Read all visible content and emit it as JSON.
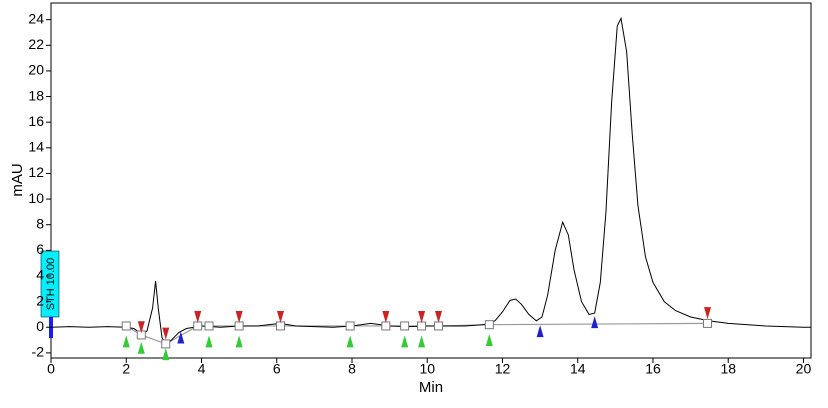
{
  "chart_data": {
    "type": "line",
    "x_label": "Min",
    "y_label": "mAU",
    "annotation": "STH 10.00",
    "xlim": [
      0,
      20.2
    ],
    "ylim": [
      -2.4,
      25.3
    ],
    "xticks": [
      0,
      2,
      4,
      6,
      8,
      10,
      12,
      14,
      16,
      18,
      20
    ],
    "yticks": [
      -2,
      0,
      2,
      4,
      6,
      8,
      10,
      12,
      14,
      16,
      18,
      20,
      22,
      24
    ],
    "series": [
      {
        "style": "line",
        "color": "#000000",
        "x": [
          0,
          0.5,
          1,
          1.5,
          2,
          2.2,
          2.4,
          2.55,
          2.7,
          2.78,
          2.85,
          2.95,
          3.05,
          3.2,
          3.4,
          3.6,
          4,
          4.5,
          5,
          5.5,
          5.8,
          6.1,
          6.5,
          7,
          7.5,
          8,
          8.5,
          9,
          9.5,
          10,
          10.5,
          11,
          11.5,
          11.8,
          12.0,
          12.2,
          12.35,
          12.5,
          12.7,
          12.9,
          13.05,
          13.2,
          13.4,
          13.6,
          13.75,
          13.9,
          14.1,
          14.3,
          14.45,
          14.6,
          14.75,
          14.9,
          15.05,
          15.15,
          15.3,
          15.45,
          15.6,
          15.8,
          16,
          16.3,
          16.6,
          17,
          17.5,
          18,
          19,
          20,
          20.2
        ],
        "values": [
          0,
          0.05,
          0,
          0.05,
          0,
          -0.1,
          -0.5,
          -0.3,
          1.5,
          3.6,
          1.5,
          -0.8,
          -1.4,
          -1.0,
          -0.4,
          -0.1,
          0.1,
          0,
          0.1,
          0.1,
          0.2,
          0.3,
          0.1,
          0.05,
          0,
          0.1,
          0.3,
          0.1,
          0.05,
          0.1,
          0.1,
          0.1,
          0.2,
          0.5,
          1.2,
          2.1,
          2.2,
          1.8,
          1.0,
          0.5,
          0.8,
          2.5,
          6.0,
          8.2,
          7.2,
          4.5,
          2.0,
          1.0,
          1.1,
          3.5,
          9.0,
          17.5,
          23.5,
          24.1,
          21.5,
          15.0,
          9.5,
          5.5,
          3.5,
          2.0,
          1.3,
          0.8,
          0.5,
          0.3,
          0.1,
          0,
          0
        ]
      },
      {
        "style": "line+square",
        "color": "#999999",
        "x": [
          2.0,
          2.4,
          3.05,
          3.9,
          4.2,
          5.0,
          6.1,
          7.95,
          8.9,
          9.4,
          9.85,
          10.3,
          11.65,
          17.45
        ],
        "values": [
          0.1,
          -0.6,
          -1.3,
          0.1,
          0.1,
          0.1,
          0.1,
          0.1,
          0.1,
          0.1,
          0.1,
          0.1,
          0.2,
          0.3
        ]
      },
      {
        "style": "triangle-up",
        "color": "#33cc33",
        "x": [
          2.0,
          2.4,
          3.05,
          4.2,
          5.0,
          7.95,
          9.4,
          9.85,
          11.65
        ],
        "values": [
          -1.1,
          -1.6,
          -2.1,
          -1.1,
          -1.1,
          -1.1,
          -1.1,
          -1.1,
          -1.0
        ]
      },
      {
        "style": "triangle-down",
        "color": "#cc2222",
        "x": [
          2.4,
          3.05,
          3.9,
          5.0,
          6.1,
          8.9,
          9.85,
          10.3,
          17.45
        ],
        "values": [
          0.0,
          -0.5,
          0.8,
          0.8,
          0.8,
          0.8,
          0.8,
          0.8,
          1.1
        ]
      },
      {
        "style": "triangle-up",
        "color": "#2222cc",
        "x": [
          3.45,
          13.0,
          14.45
        ],
        "values": [
          -0.8,
          -0.3,
          0.4
        ]
      }
    ]
  }
}
